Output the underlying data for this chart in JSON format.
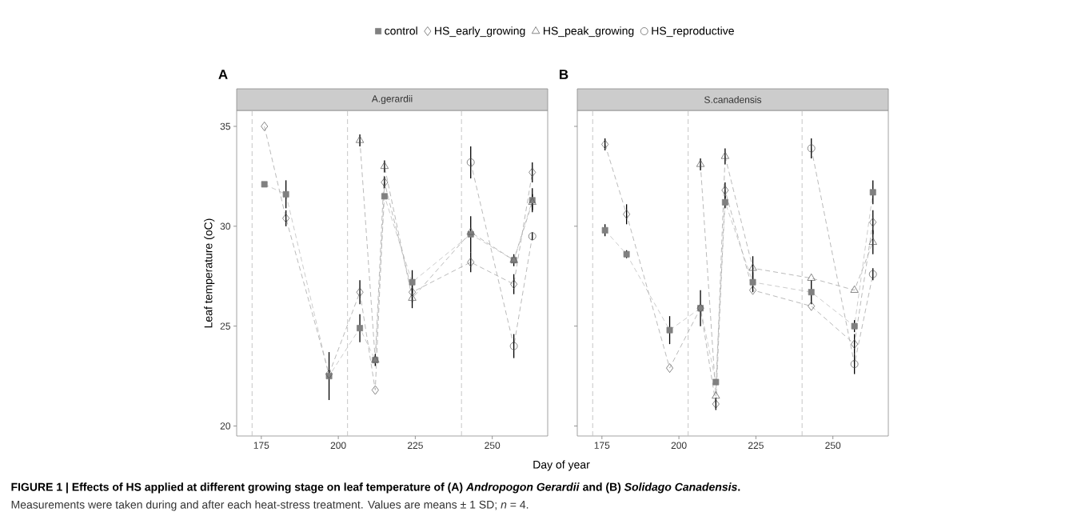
{
  "chart_data": [
    {
      "type": "line",
      "title": "A.gerardii",
      "xlabel": "Day of year",
      "ylabel": "Leaf temperature (oC)",
      "annotations": [
        "A",
        "FIGURE 1 | Effects of HS applied at different growing stage on leaf temperature of (A) *Andropogon Gerardii* and (B) *Solidago Canadensis*.",
        "Measurements were taken during and after each heat-stress treatment. Values are means ± 1 SD; *n* = 4."
      ],
      "xlim": [
        167,
        268
      ],
      "ylim": [
        19.5,
        35.8
      ],
      "xticks": [
        175,
        200,
        225,
        250
      ],
      "yticks": [
        20,
        25,
        30,
        35
      ],
      "legend": "top",
      "line_style": "dashed",
      "ref_lines": [
        {
          "axis": "x",
          "value": 172,
          "color": "#bfbfbf",
          "line_style": "dashed"
        },
        {
          "axis": "x",
          "value": 203,
          "color": "#bfbfbf",
          "line_style": "dashed"
        },
        {
          "axis": "x",
          "value": 240,
          "color": "#bfbfbf",
          "line_style": "dashed"
        }
      ],
      "series": [
        {
          "name": "control",
          "color": "#808080",
          "marker": "square",
          "x": [
            176,
            183,
            197,
            207,
            212,
            215,
            224,
            243,
            257,
            263
          ],
          "values": [
            32.1,
            31.6,
            22.5,
            24.9,
            23.3,
            31.5,
            27.2,
            29.6,
            28.3,
            31.3
          ],
          "errors": [
            null,
            0.7,
            1.2,
            0.7,
            0.3,
            null,
            0.6,
            0.9,
            0.3,
            0.6
          ]
        },
        {
          "name": "HS_early_growing",
          "color": "#555555",
          "marker": "diamond",
          "x": [
            176,
            183,
            197,
            207,
            212,
            215,
            224,
            243,
            257,
            263
          ],
          "values": [
            35.0,
            30.4,
            22.6,
            26.7,
            21.8,
            32.2,
            26.7,
            28.2,
            27.1,
            32.7
          ],
          "errors": [
            null,
            0.4,
            null,
            0.6,
            null,
            0.3,
            0.5,
            0.5,
            0.5,
            0.5
          ]
        },
        {
          "name": "HS_peak_growing",
          "color": "#555555",
          "marker": "triangle",
          "x": [
            207,
            212,
            215,
            224,
            243,
            257,
            263
          ],
          "values": [
            34.3,
            23.3,
            33.0,
            26.4,
            29.7,
            28.3,
            31.2
          ],
          "errors": [
            0.3,
            null,
            0.3,
            0.5,
            null,
            null,
            0.4
          ]
        },
        {
          "name": "HS_reproductive",
          "color": "#555555",
          "marker": "circle",
          "x": [
            243,
            257,
            263
          ],
          "values": [
            33.2,
            24.0,
            29.5
          ],
          "errors": [
            0.8,
            0.6,
            0.2
          ]
        }
      ]
    },
    {
      "type": "line",
      "title": "S.canadensis",
      "annotations": [
        "B"
      ],
      "xlim": [
        167,
        268
      ],
      "ylim": [
        19.5,
        35.8
      ],
      "xticks": [
        175,
        200,
        225,
        250
      ],
      "yticks": [
        20,
        25,
        30,
        35
      ],
      "tick_labels": "x",
      "line_style": "dashed",
      "ref_lines": [
        {
          "axis": "x",
          "value": 172,
          "color": "#bfbfbf",
          "line_style": "dashed"
        },
        {
          "axis": "x",
          "value": 203,
          "color": "#bfbfbf",
          "line_style": "dashed"
        },
        {
          "axis": "x",
          "value": 240,
          "color": "#bfbfbf",
          "line_style": "dashed"
        }
      ],
      "series": [
        {
          "color": "#808080",
          "marker": "square",
          "x": [
            176,
            183,
            197,
            207,
            212,
            215,
            224,
            243,
            257,
            263
          ],
          "values": [
            29.8,
            28.6,
            24.8,
            25.9,
            22.2,
            31.2,
            27.2,
            26.7,
            25.0,
            31.7
          ],
          "errors": [
            0.3,
            0.2,
            0.7,
            0.9,
            null,
            0.3,
            0.5,
            0.6,
            0.3,
            0.6
          ]
        },
        {
          "color": "#555555",
          "marker": "diamond",
          "x": [
            176,
            183,
            197,
            207,
            212,
            215,
            224,
            243,
            257,
            263
          ],
          "values": [
            34.1,
            30.6,
            22.9,
            25.9,
            21.1,
            31.8,
            26.8,
            26.0,
            24.1,
            30.2
          ],
          "errors": [
            0.3,
            0.5,
            null,
            null,
            0.3,
            0.4,
            null,
            null,
            0.5,
            0.6
          ]
        },
        {
          "color": "#555555",
          "marker": "triangle",
          "x": [
            207,
            212,
            215,
            224,
            243,
            257,
            263
          ],
          "values": [
            33.1,
            21.5,
            33.5,
            27.9,
            27.4,
            26.8,
            29.2
          ],
          "errors": [
            0.3,
            null,
            0.4,
            0.6,
            null,
            null,
            0.6
          ]
        },
        {
          "color": "#555555",
          "marker": "circle",
          "x": [
            243,
            257,
            263
          ],
          "values": [
            33.9,
            23.1,
            27.6
          ],
          "errors": [
            0.5,
            0.5,
            0.3
          ]
        }
      ]
    }
  ]
}
